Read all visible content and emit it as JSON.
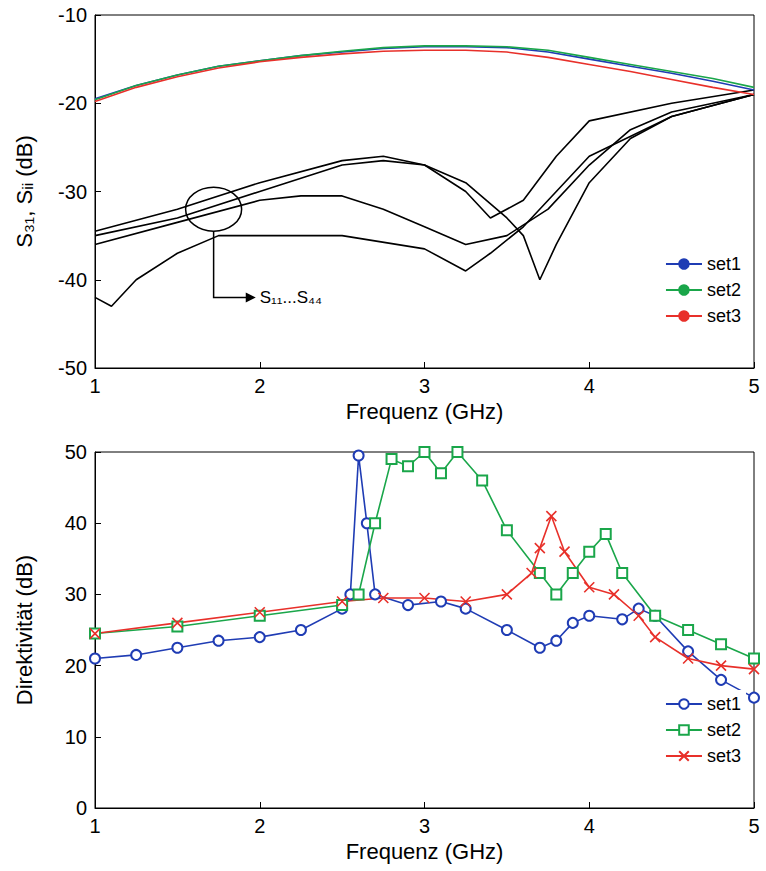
{
  "chart_data": [
    {
      "type": "line",
      "xlabel": "Frequenz (GHz)",
      "ylabel": "S₃₁, Sᵢᵢ (dB)",
      "xlim": [
        1,
        5
      ],
      "xticks": [
        1,
        2,
        3,
        4,
        5
      ],
      "ylim": [
        -50,
        -10
      ],
      "yticks": [
        -50,
        -40,
        -30,
        -20,
        -10
      ],
      "grid": false,
      "legend": "lower right",
      "series": [
        {
          "name": "set1",
          "color": "#1f3cb4",
          "x": [
            1,
            1.25,
            1.5,
            1.75,
            2,
            2.25,
            2.5,
            2.75,
            3,
            3.25,
            3.5,
            3.75,
            4,
            4.25,
            4.5,
            4.75,
            5
          ],
          "values": [
            -19.5,
            -18,
            -16.8,
            -15.8,
            -15.2,
            -14.6,
            -14.2,
            -13.8,
            -13.6,
            -13.6,
            -13.7,
            -14.2,
            -15,
            -15.8,
            -16.6,
            -17.5,
            -18.5
          ]
        },
        {
          "name": "set2",
          "color": "#1aa64a",
          "x": [
            1,
            1.25,
            1.5,
            1.75,
            2,
            2.25,
            2.5,
            2.75,
            3,
            3.25,
            3.5,
            3.75,
            4,
            4.25,
            4.5,
            4.75,
            5
          ],
          "values": [
            -19.6,
            -18,
            -16.8,
            -15.8,
            -15.2,
            -14.6,
            -14.1,
            -13.7,
            -13.5,
            -13.5,
            -13.6,
            -14,
            -14.8,
            -15.6,
            -16.4,
            -17.2,
            -18.2
          ]
        },
        {
          "name": "set3",
          "color": "#e8302a",
          "x": [
            1,
            1.25,
            1.5,
            1.75,
            2,
            2.25,
            2.5,
            2.75,
            3,
            3.25,
            3.5,
            3.75,
            4,
            4.25,
            4.5,
            4.75,
            5
          ],
          "values": [
            -19.8,
            -18.2,
            -17,
            -16,
            -15.3,
            -14.8,
            -14.4,
            -14.1,
            -14,
            -14,
            -14.2,
            -14.8,
            -15.6,
            -16.4,
            -17.3,
            -18.2,
            -19
          ]
        },
        {
          "color": "#000000",
          "x": [
            1,
            1.5,
            2,
            2.5,
            2.75,
            3,
            3.25,
            3.5,
            3.6,
            3.7,
            3.8,
            4,
            4.25,
            4.5,
            5
          ],
          "values": [
            -35,
            -33,
            -30,
            -27,
            -26.5,
            -27,
            -29,
            -33,
            -35,
            -40,
            -36,
            -29,
            -24,
            -21.5,
            -19
          ]
        },
        {
          "color": "#000000",
          "x": [
            1,
            1.5,
            2,
            2.5,
            2.75,
            3,
            3.25,
            3.4,
            3.6,
            3.8,
            4,
            4.5,
            5
          ],
          "values": [
            -34.5,
            -32,
            -29,
            -26.5,
            -26,
            -27,
            -30,
            -33,
            -31,
            -26,
            -22,
            -20,
            -18.5
          ]
        },
        {
          "color": "#000000",
          "x": [
            1,
            1.5,
            2,
            2.25,
            2.5,
            2.75,
            3,
            3.25,
            3.5,
            3.75,
            4,
            4.25,
            4.5,
            5
          ],
          "values": [
            -36,
            -33.5,
            -31,
            -30.5,
            -30.5,
            -32,
            -34,
            -36,
            -35,
            -32,
            -27,
            -23,
            -21,
            -19
          ]
        },
        {
          "color": "#000000",
          "x": [
            1,
            1.1,
            1.25,
            1.5,
            1.75,
            2,
            2.5,
            3,
            3.25,
            3.4,
            3.6,
            3.8,
            4,
            4.5,
            5
          ],
          "values": [
            -42,
            -43,
            -40,
            -37,
            -35,
            -35,
            -35,
            -36.5,
            -39,
            -37,
            -34,
            -30,
            -26,
            -21.5,
            -19
          ]
        }
      ],
      "annotations": [
        {
          "text": "S₁₁...S₄₄",
          "x": 2.0,
          "y": -42,
          "point": [
            1.72,
            -32
          ]
        }
      ]
    },
    {
      "type": "line",
      "xlabel": "Frequenz (GHz)",
      "ylabel": "Direktivität (dB)",
      "xlim": [
        1,
        5
      ],
      "xticks": [
        1,
        2,
        3,
        4,
        5
      ],
      "ylim": [
        0,
        50
      ],
      "yticks": [
        0,
        10,
        20,
        30,
        40,
        50
      ],
      "grid": false,
      "legend": "lower right",
      "series": [
        {
          "name": "set1",
          "color": "#1f3cb4",
          "marker": "circle",
          "x": [
            1,
            1.25,
            1.5,
            1.75,
            2,
            2.25,
            2.5,
            2.55,
            2.6,
            2.65,
            2.7,
            2.9,
            3.1,
            3.25,
            3.5,
            3.7,
            3.8,
            3.9,
            4,
            4.2,
            4.3,
            4.4,
            4.6,
            4.8,
            5
          ],
          "values": [
            21,
            21.5,
            22.5,
            23.5,
            24,
            25,
            28,
            30,
            49.5,
            40,
            30,
            28.5,
            29,
            28,
            25,
            22.5,
            23.5,
            26,
            27,
            26.5,
            28,
            27,
            22,
            18,
            15.5
          ]
        },
        {
          "name": "set2",
          "color": "#1aa64a",
          "marker": "square",
          "x": [
            1,
            1.5,
            2,
            2.5,
            2.6,
            2.7,
            2.8,
            2.9,
            3,
            3.1,
            3.2,
            3.35,
            3.5,
            3.7,
            3.8,
            3.9,
            4,
            4.1,
            4.2,
            4.4,
            4.6,
            4.8,
            5
          ],
          "values": [
            24.5,
            25.5,
            27,
            28.5,
            30,
            40,
            49,
            48,
            50,
            47,
            50,
            46,
            39,
            33,
            30,
            33,
            36,
            38.5,
            33,
            27,
            25,
            23,
            21
          ]
        },
        {
          "name": "set3",
          "color": "#e8302a",
          "marker": "x",
          "x": [
            1,
            1.5,
            2,
            2.5,
            2.75,
            3,
            3.25,
            3.5,
            3.65,
            3.7,
            3.77,
            3.85,
            4,
            4.15,
            4.3,
            4.4,
            4.6,
            4.8,
            5
          ],
          "values": [
            24.5,
            26,
            27.5,
            29,
            29.5,
            29.5,
            29,
            30,
            33,
            36.5,
            41,
            36,
            31,
            30,
            27,
            24,
            21,
            20,
            19.5
          ]
        }
      ]
    }
  ]
}
